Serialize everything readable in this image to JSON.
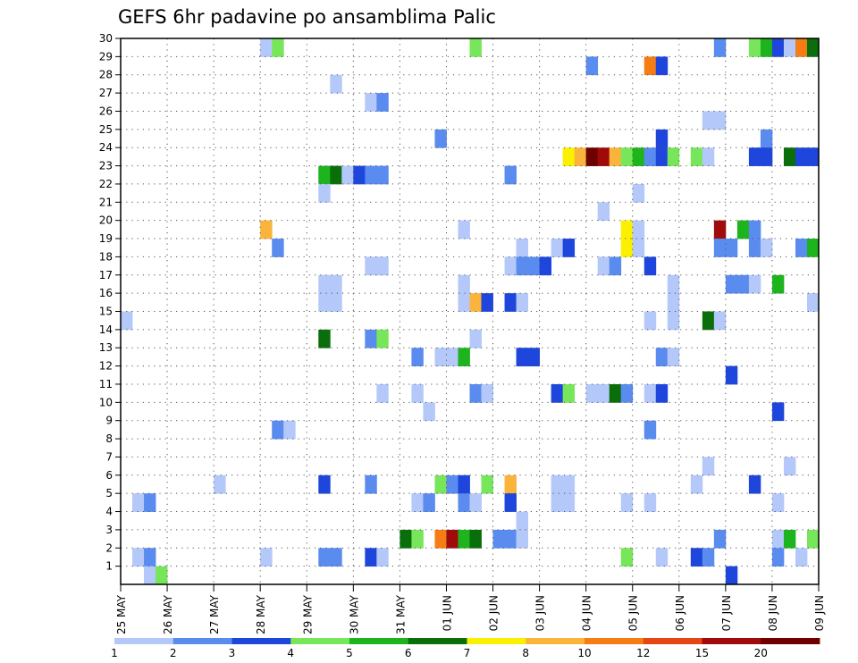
{
  "chart_data": {
    "type": "heatmap",
    "title": "GEFS 6hr padavine po ansamblima Palic",
    "xlabel": "",
    "ylabel": "",
    "x_ticks": [
      "25 MAY",
      "26 MAY",
      "27 MAY",
      "28 MAY",
      "29 MAY",
      "30 MAY",
      "31 MAY",
      "01 JUN",
      "02 JUN",
      "03 JUN",
      "04 JUN",
      "05 JUN",
      "06 JUN",
      "07 JUN",
      "08 JUN",
      "09 JUN"
    ],
    "y_ticks": [
      "1",
      "2",
      "3",
      "4",
      "5",
      "6",
      "7",
      "8",
      "9",
      "10",
      "11",
      "12",
      "13",
      "14",
      "15",
      "16",
      "17",
      "18",
      "19",
      "20",
      "21",
      "22",
      "23",
      "24",
      "25",
      "26",
      "27",
      "28",
      "29",
      "30"
    ],
    "x_range": [
      0,
      60
    ],
    "y_range": [
      0,
      30
    ],
    "grid": true,
    "legend": {
      "placement": "bottom",
      "labels": [
        "1",
        "2",
        "3",
        "4",
        "5",
        "6",
        "7",
        "8",
        "10",
        "12",
        "15",
        "20"
      ],
      "colors": [
        "#b4c8fa",
        "#5a8cf0",
        "#1e46dc",
        "#78e65a",
        "#1eb41e",
        "#0a6e0a",
        "#faf000",
        "#fab43c",
        "#f57d14",
        "#e64614",
        "#a00a0a",
        "#6e0000"
      ]
    },
    "cells": [
      [
        12,
        30,
        1
      ],
      [
        13,
        30,
        4
      ],
      [
        30,
        30,
        4
      ],
      [
        51,
        30,
        2
      ],
      [
        54,
        30,
        4
      ],
      [
        55,
        30,
        5
      ],
      [
        56,
        30,
        3
      ],
      [
        57,
        30,
        1
      ],
      [
        58,
        30,
        9
      ],
      [
        59,
        30,
        6
      ],
      [
        40,
        29,
        2
      ],
      [
        45,
        29,
        9
      ],
      [
        46,
        29,
        3
      ],
      [
        18,
        28,
        1
      ],
      [
        21,
        27,
        1
      ],
      [
        22,
        27,
        2
      ],
      [
        50,
        26,
        1
      ],
      [
        51,
        26,
        1
      ],
      [
        27,
        25,
        2
      ],
      [
        46,
        25,
        3
      ],
      [
        55,
        25,
        2
      ],
      [
        38,
        24,
        7
      ],
      [
        39,
        24,
        8
      ],
      [
        40,
        24,
        12
      ],
      [
        41,
        24,
        11
      ],
      [
        42,
        24,
        8
      ],
      [
        43,
        24,
        4
      ],
      [
        44,
        24,
        5
      ],
      [
        45,
        24,
        2
      ],
      [
        46,
        24,
        3
      ],
      [
        47,
        24,
        4
      ],
      [
        49,
        24,
        4
      ],
      [
        50,
        24,
        1
      ],
      [
        54,
        24,
        3
      ],
      [
        55,
        24,
        3
      ],
      [
        57,
        24,
        6
      ],
      [
        58,
        24,
        3
      ],
      [
        59,
        24,
        3
      ],
      [
        17,
        23,
        5
      ],
      [
        18,
        23,
        6
      ],
      [
        19,
        23,
        1
      ],
      [
        20,
        23,
        3
      ],
      [
        21,
        23,
        2
      ],
      [
        22,
        23,
        2
      ],
      [
        33,
        23,
        2
      ],
      [
        17,
        22,
        1
      ],
      [
        44,
        22,
        1
      ],
      [
        41,
        21,
        1
      ],
      [
        12,
        20,
        8
      ],
      [
        29,
        20,
        1
      ],
      [
        43,
        20,
        7
      ],
      [
        44,
        20,
        1
      ],
      [
        51,
        20,
        11
      ],
      [
        53,
        20,
        5
      ],
      [
        54,
        20,
        2
      ],
      [
        13,
        19,
        2
      ],
      [
        34,
        19,
        1
      ],
      [
        37,
        19,
        1
      ],
      [
        38,
        19,
        3
      ],
      [
        43,
        19,
        7
      ],
      [
        44,
        19,
        1
      ],
      [
        51,
        19,
        2
      ],
      [
        52,
        19,
        2
      ],
      [
        54,
        19,
        2
      ],
      [
        55,
        19,
        1
      ],
      [
        58,
        19,
        2
      ],
      [
        59,
        19,
        5
      ],
      [
        21,
        18,
        1
      ],
      [
        22,
        18,
        1
      ],
      [
        33,
        18,
        1
      ],
      [
        34,
        18,
        2
      ],
      [
        35,
        18,
        2
      ],
      [
        36,
        18,
        3
      ],
      [
        41,
        18,
        1
      ],
      [
        42,
        18,
        2
      ],
      [
        45,
        18,
        3
      ],
      [
        17,
        17,
        1
      ],
      [
        18,
        17,
        1
      ],
      [
        29,
        17,
        1
      ],
      [
        47,
        17,
        1
      ],
      [
        52,
        17,
        2
      ],
      [
        53,
        17,
        2
      ],
      [
        54,
        17,
        1
      ],
      [
        56,
        17,
        5
      ],
      [
        17,
        16,
        1
      ],
      [
        18,
        16,
        1
      ],
      [
        29,
        16,
        1
      ],
      [
        30,
        16,
        8
      ],
      [
        31,
        16,
        3
      ],
      [
        33,
        16,
        3
      ],
      [
        34,
        16,
        1
      ],
      [
        47,
        16,
        1
      ],
      [
        59,
        16,
        1
      ],
      [
        0,
        15,
        1
      ],
      [
        45,
        15,
        1
      ],
      [
        47,
        15,
        1
      ],
      [
        50,
        15,
        6
      ],
      [
        51,
        15,
        1
      ],
      [
        17,
        14,
        6
      ],
      [
        21,
        14,
        2
      ],
      [
        22,
        14,
        4
      ],
      [
        30,
        14,
        1
      ],
      [
        25,
        13,
        2
      ],
      [
        27,
        13,
        1
      ],
      [
        28,
        13,
        1
      ],
      [
        29,
        13,
        5
      ],
      [
        34,
        13,
        3
      ],
      [
        35,
        13,
        3
      ],
      [
        46,
        13,
        2
      ],
      [
        47,
        13,
        1
      ],
      [
        52,
        12,
        3
      ],
      [
        22,
        11,
        1
      ],
      [
        25,
        11,
        1
      ],
      [
        30,
        11,
        2
      ],
      [
        31,
        11,
        1
      ],
      [
        37,
        11,
        3
      ],
      [
        38,
        11,
        4
      ],
      [
        40,
        11,
        1
      ],
      [
        41,
        11,
        1
      ],
      [
        42,
        11,
        6
      ],
      [
        43,
        11,
        2
      ],
      [
        45,
        11,
        1
      ],
      [
        46,
        11,
        3
      ],
      [
        26,
        10,
        1
      ],
      [
        56,
        10,
        3
      ],
      [
        13,
        9,
        2
      ],
      [
        14,
        9,
        1
      ],
      [
        45,
        9,
        2
      ],
      [
        50,
        7,
        1
      ],
      [
        57,
        7,
        1
      ],
      [
        8,
        6,
        1
      ],
      [
        17,
        6,
        3
      ],
      [
        21,
        6,
        2
      ],
      [
        27,
        6,
        4
      ],
      [
        28,
        6,
        2
      ],
      [
        29,
        6,
        3
      ],
      [
        31,
        6,
        4
      ],
      [
        33,
        6,
        8
      ],
      [
        37,
        6,
        1
      ],
      [
        38,
        6,
        1
      ],
      [
        49,
        6,
        1
      ],
      [
        54,
        6,
        3
      ],
      [
        1,
        5,
        1
      ],
      [
        2,
        5,
        2
      ],
      [
        25,
        5,
        1
      ],
      [
        26,
        5,
        2
      ],
      [
        29,
        5,
        2
      ],
      [
        30,
        5,
        1
      ],
      [
        33,
        5,
        3
      ],
      [
        37,
        5,
        1
      ],
      [
        38,
        5,
        1
      ],
      [
        43,
        5,
        1
      ],
      [
        45,
        5,
        1
      ],
      [
        56,
        5,
        1
      ],
      [
        34,
        4,
        1
      ],
      [
        24,
        3,
        6
      ],
      [
        25,
        3,
        4
      ],
      [
        27,
        3,
        9
      ],
      [
        28,
        3,
        11
      ],
      [
        29,
        3,
        5
      ],
      [
        30,
        3,
        6
      ],
      [
        32,
        3,
        2
      ],
      [
        33,
        3,
        2
      ],
      [
        34,
        3,
        1
      ],
      [
        51,
        3,
        2
      ],
      [
        56,
        3,
        1
      ],
      [
        57,
        3,
        5
      ],
      [
        59,
        3,
        4
      ],
      [
        1,
        2,
        1
      ],
      [
        2,
        2,
        2
      ],
      [
        12,
        2,
        1
      ],
      [
        17,
        2,
        2
      ],
      [
        18,
        2,
        2
      ],
      [
        21,
        2,
        3
      ],
      [
        22,
        2,
        1
      ],
      [
        43,
        2,
        4
      ],
      [
        46,
        2,
        1
      ],
      [
        49,
        2,
        3
      ],
      [
        50,
        2,
        2
      ],
      [
        56,
        2,
        2
      ],
      [
        58,
        2,
        1
      ],
      [
        2,
        1,
        1
      ],
      [
        3,
        1,
        4
      ],
      [
        52,
        1,
        3
      ]
    ]
  }
}
